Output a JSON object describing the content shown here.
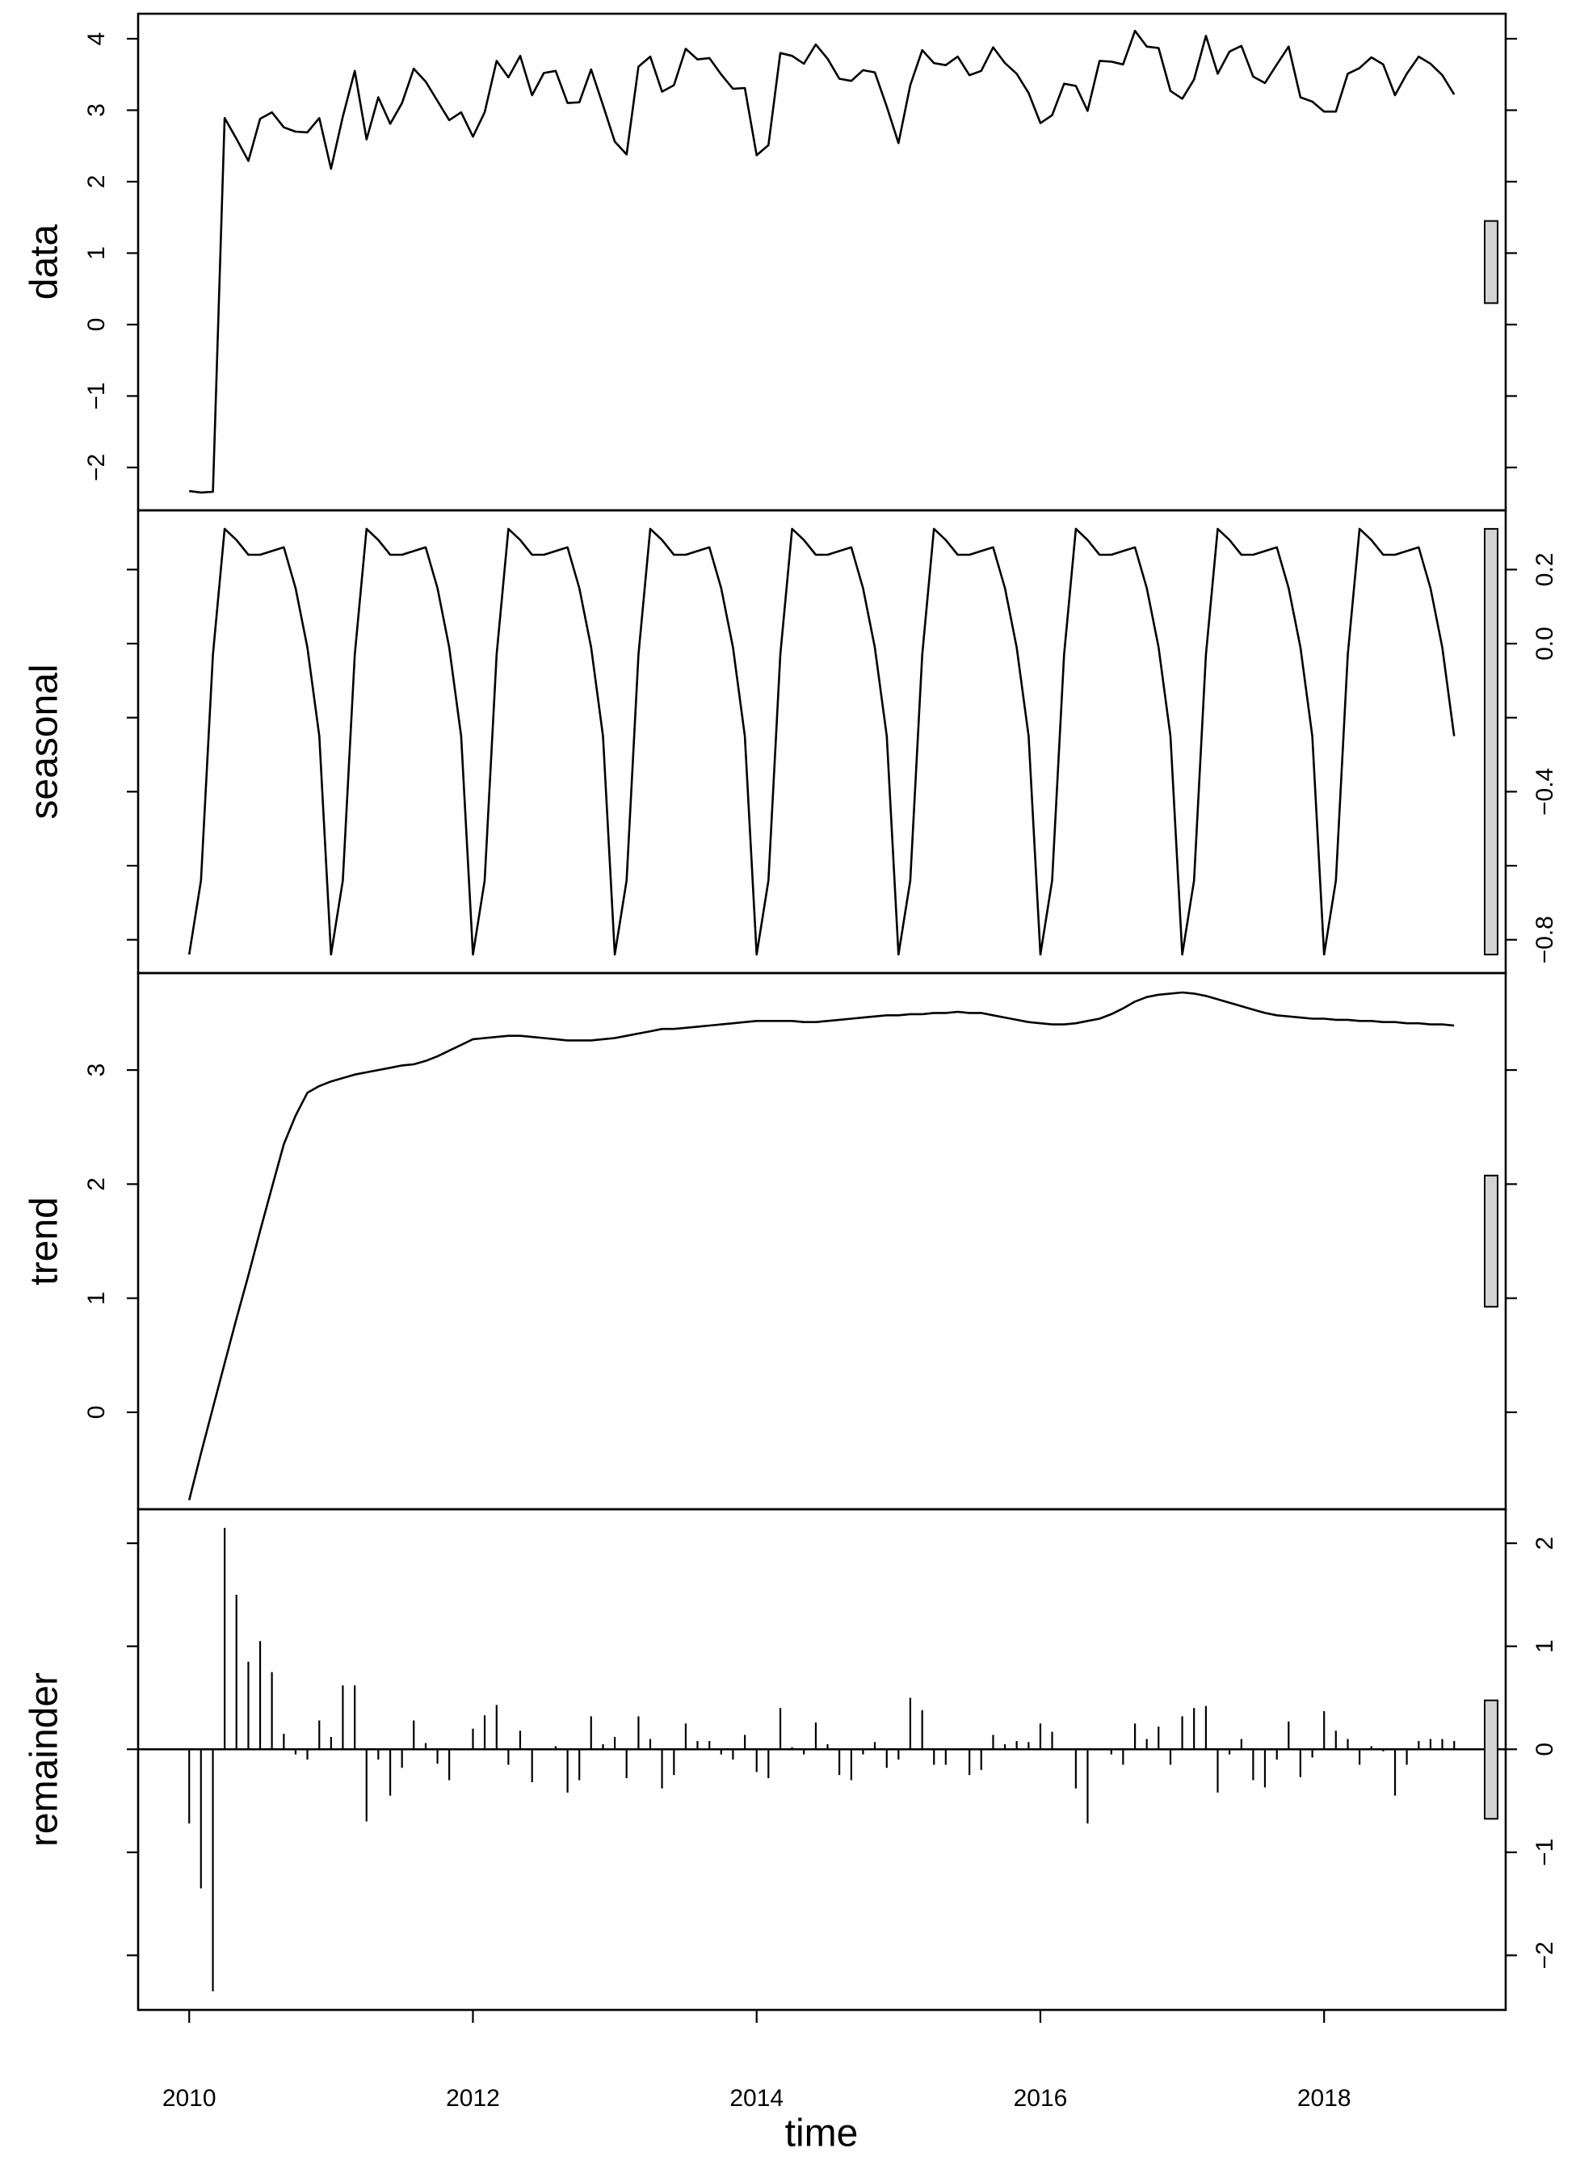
{
  "chart_data": {
    "type": "stl",
    "xlabel": "time",
    "xlim": [
      2009.64,
      2019.28
    ],
    "xticks": [
      2010,
      2012,
      2014,
      2016,
      2018
    ],
    "x": [
      2010,
      2010.083,
      2010.167,
      2010.25,
      2010.333,
      2010.417,
      2010.5,
      2010.583,
      2010.667,
      2010.75,
      2010.833,
      2010.917,
      2011,
      2011.083,
      2011.167,
      2011.25,
      2011.333,
      2011.417,
      2011.5,
      2011.583,
      2011.667,
      2011.75,
      2011.833,
      2011.917,
      2012,
      2012.083,
      2012.167,
      2012.25,
      2012.333,
      2012.417,
      2012.5,
      2012.583,
      2012.667,
      2012.75,
      2012.833,
      2012.917,
      2013,
      2013.083,
      2013.167,
      2013.25,
      2013.333,
      2013.417,
      2013.5,
      2013.583,
      2013.667,
      2013.75,
      2013.833,
      2013.917,
      2014,
      2014.083,
      2014.167,
      2014.25,
      2014.333,
      2014.417,
      2014.5,
      2014.583,
      2014.667,
      2014.75,
      2014.833,
      2014.917,
      2015,
      2015.083,
      2015.167,
      2015.25,
      2015.333,
      2015.417,
      2015.5,
      2015.583,
      2015.667,
      2015.75,
      2015.833,
      2015.917,
      2016,
      2016.083,
      2016.167,
      2016.25,
      2016.333,
      2016.417,
      2016.5,
      2016.583,
      2016.667,
      2016.75,
      2016.833,
      2016.917,
      2017,
      2017.083,
      2017.167,
      2017.25,
      2017.333,
      2017.417,
      2017.5,
      2017.583,
      2017.667,
      2017.75,
      2017.833,
      2017.917,
      2018,
      2018.083,
      2018.167,
      2018.25,
      2018.333,
      2018.417,
      2018.5,
      2018.583,
      2018.667,
      2018.75,
      2018.833,
      2018.917
    ],
    "panels": [
      {
        "ylabel": "data",
        "type": "line",
        "axis_side": "left",
        "color": "#000000",
        "ylim": [
          -2.6,
          4.35
        ],
        "yticks": [
          {
            "value": -2,
            "label": "−2"
          },
          {
            "value": -1,
            "label": "−1"
          },
          0,
          1,
          2,
          3,
          4
        ],
        "values": [
          -2.33,
          -2.35,
          -2.34,
          2.89,
          2.6,
          2.29,
          2.88,
          2.97,
          2.76,
          2.7,
          2.69,
          2.89,
          2.18,
          2.91,
          3.55,
          2.59,
          3.18,
          2.81,
          3.1,
          3.58,
          3.4,
          3.13,
          2.86,
          2.97,
          2.63,
          2.97,
          3.69,
          3.46,
          3.76,
          3.21,
          3.52,
          3.55,
          3.1,
          3.11,
          3.57,
          3.07,
          2.56,
          2.38,
          3.61,
          3.75,
          3.26,
          3.35,
          3.86,
          3.71,
          3.73,
          3.5,
          3.3,
          3.31,
          2.37,
          2.51,
          3.8,
          3.76,
          3.65,
          3.92,
          3.72,
          3.44,
          3.41,
          3.56,
          3.53,
          3.05,
          2.54,
          3.35,
          3.84,
          3.66,
          3.63,
          3.75,
          3.49,
          3.55,
          3.88,
          3.66,
          3.51,
          3.24,
          2.82,
          2.93,
          3.37,
          3.34,
          2.99,
          3.69,
          3.68,
          3.64,
          4.11,
          3.89,
          3.87,
          3.27,
          3.16,
          3.43,
          4.04,
          3.51,
          3.82,
          3.9,
          3.47,
          3.38,
          3.64,
          3.89,
          3.18,
          3.12,
          2.98,
          2.98,
          3.51,
          3.59,
          3.74,
          3.64,
          3.21,
          3.51,
          3.75,
          3.65,
          3.49,
          3.22
        ]
      },
      {
        "ylabel": "seasonal",
        "type": "line",
        "axis_side": "right",
        "color": "#000000",
        "ylim": [
          -0.89,
          0.36
        ],
        "yticks": [
          {
            "value": -0.8,
            "label": "−0.8"
          },
          {
            "value": -0.4,
            "label": "−0.4"
          },
          {
            "value": 0,
            "label": "0.0"
          },
          0.2
        ],
        "minor_yticks": [
          -0.6,
          -0.2
        ],
        "values": [
          -0.84,
          -0.64,
          -0.03,
          0.31,
          0.28,
          0.24,
          0.24,
          0.25,
          0.26,
          0.15,
          -0.01,
          -0.25,
          -0.84,
          -0.64,
          -0.03,
          0.31,
          0.28,
          0.24,
          0.24,
          0.25,
          0.26,
          0.15,
          -0.01,
          -0.25,
          -0.84,
          -0.64,
          -0.03,
          0.31,
          0.28,
          0.24,
          0.24,
          0.25,
          0.26,
          0.15,
          -0.01,
          -0.25,
          -0.84,
          -0.64,
          -0.03,
          0.31,
          0.28,
          0.24,
          0.24,
          0.25,
          0.26,
          0.15,
          -0.01,
          -0.25,
          -0.84,
          -0.64,
          -0.03,
          0.31,
          0.28,
          0.24,
          0.24,
          0.25,
          0.26,
          0.15,
          -0.01,
          -0.25,
          -0.84,
          -0.64,
          -0.03,
          0.31,
          0.28,
          0.24,
          0.24,
          0.25,
          0.26,
          0.15,
          -0.01,
          -0.25,
          -0.84,
          -0.64,
          -0.03,
          0.31,
          0.28,
          0.24,
          0.24,
          0.25,
          0.26,
          0.15,
          -0.01,
          -0.25,
          -0.84,
          -0.64,
          -0.03,
          0.31,
          0.28,
          0.24,
          0.24,
          0.25,
          0.26,
          0.15,
          -0.01,
          -0.25,
          -0.84,
          -0.64,
          -0.03,
          0.31,
          0.28,
          0.24,
          0.24,
          0.25,
          0.26,
          0.15,
          -0.01,
          -0.25
        ]
      },
      {
        "ylabel": "trend",
        "type": "line",
        "axis_side": "left",
        "color": "#000000",
        "ylim": [
          -0.85,
          3.85
        ],
        "yticks": [
          0,
          1,
          2,
          3
        ],
        "values": [
          -0.77,
          -0.36,
          0.04,
          0.43,
          0.82,
          1.2,
          1.59,
          1.97,
          2.35,
          2.6,
          2.8,
          2.86,
          2.9,
          2.93,
          2.96,
          2.98,
          3.0,
          3.02,
          3.04,
          3.05,
          3.08,
          3.12,
          3.17,
          3.22,
          3.27,
          3.28,
          3.29,
          3.3,
          3.3,
          3.29,
          3.28,
          3.27,
          3.26,
          3.26,
          3.26,
          3.27,
          3.28,
          3.3,
          3.32,
          3.34,
          3.36,
          3.36,
          3.37,
          3.38,
          3.39,
          3.4,
          3.41,
          3.42,
          3.43,
          3.43,
          3.43,
          3.43,
          3.42,
          3.42,
          3.43,
          3.44,
          3.45,
          3.46,
          3.47,
          3.48,
          3.48,
          3.49,
          3.49,
          3.5,
          3.5,
          3.51,
          3.5,
          3.5,
          3.48,
          3.46,
          3.44,
          3.42,
          3.41,
          3.4,
          3.4,
          3.41,
          3.43,
          3.45,
          3.49,
          3.54,
          3.6,
          3.64,
          3.66,
          3.67,
          3.68,
          3.67,
          3.65,
          3.62,
          3.59,
          3.56,
          3.53,
          3.5,
          3.48,
          3.47,
          3.46,
          3.45,
          3.45,
          3.44,
          3.44,
          3.43,
          3.43,
          3.42,
          3.42,
          3.41,
          3.41,
          3.4,
          3.4,
          3.39
        ]
      },
      {
        "ylabel": "remainder",
        "type": "spike",
        "axis_side": "right",
        "color": "#000000",
        "ylim": [
          -2.53,
          2.33
        ],
        "yticks": [
          {
            "value": -2,
            "label": "−2"
          },
          {
            "value": -1,
            "label": "−1"
          },
          0,
          1,
          2
        ],
        "values": [
          -0.72,
          -1.35,
          -2.35,
          2.15,
          1.5,
          0.85,
          1.05,
          0.75,
          0.15,
          -0.05,
          -0.1,
          0.28,
          0.12,
          0.62,
          0.62,
          -0.7,
          -0.1,
          -0.45,
          -0.18,
          0.28,
          0.06,
          -0.14,
          -0.3,
          0.0,
          0.2,
          0.33,
          0.43,
          -0.15,
          0.18,
          -0.32,
          0.0,
          0.03,
          -0.42,
          -0.3,
          0.32,
          0.05,
          0.12,
          -0.28,
          0.32,
          0.1,
          -0.38,
          -0.25,
          0.25,
          0.08,
          0.08,
          -0.05,
          -0.1,
          0.14,
          -0.22,
          -0.28,
          0.4,
          0.02,
          -0.05,
          0.26,
          0.05,
          -0.25,
          -0.3,
          -0.05,
          0.07,
          -0.18,
          -0.1,
          0.5,
          0.38,
          -0.15,
          -0.15,
          0.0,
          -0.25,
          -0.2,
          0.14,
          0.05,
          0.08,
          0.07,
          0.25,
          0.17,
          0.0,
          -0.38,
          -0.72,
          0.0,
          -0.05,
          -0.15,
          0.25,
          0.1,
          0.22,
          -0.15,
          0.32,
          0.4,
          0.42,
          -0.42,
          -0.05,
          0.1,
          -0.3,
          -0.37,
          -0.1,
          0.27,
          -0.27,
          -0.08,
          0.37,
          0.18,
          0.1,
          -0.15,
          0.03,
          -0.02,
          -0.45,
          -0.15,
          0.08,
          0.1,
          0.1,
          0.08
        ]
      }
    ]
  }
}
